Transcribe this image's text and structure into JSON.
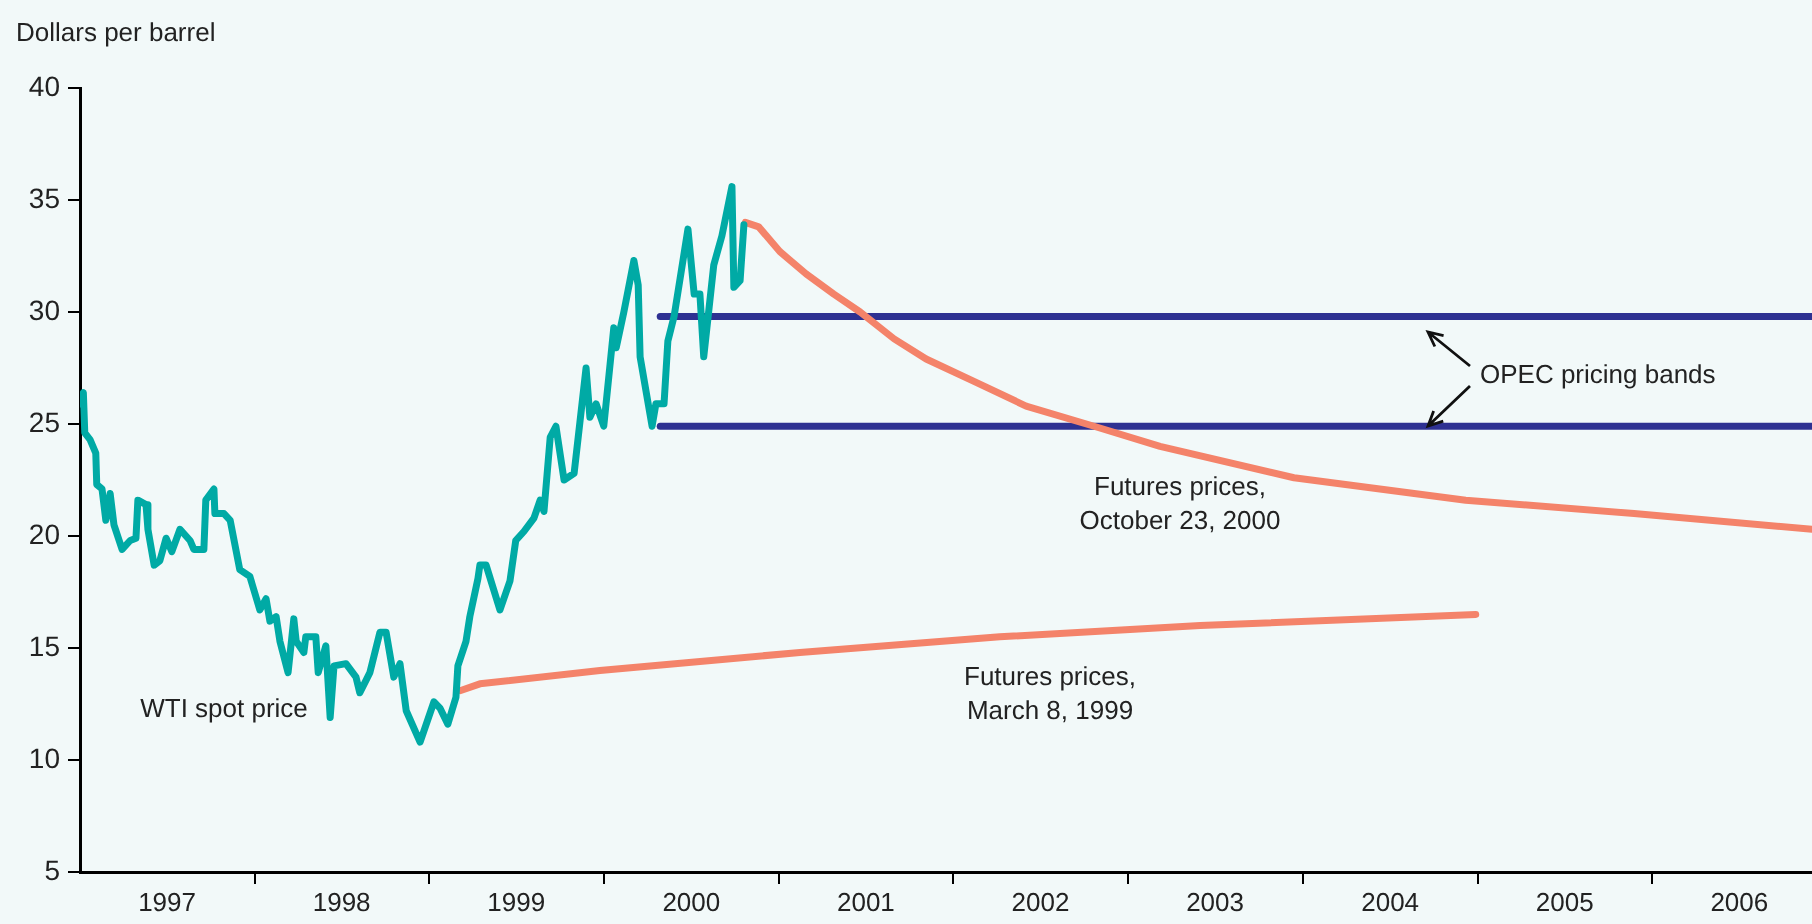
{
  "chart_data": {
    "type": "line",
    "ylabel": "Dollars per barrel",
    "xlim": [
      "1997-01-01",
      "2006-12-01"
    ],
    "xticks": [
      {
        "value": "1997-07-02",
        "label": "1997"
      },
      {
        "value": "1998-01-01",
        "label": null
      },
      {
        "value": "1998-07-02",
        "label": "1998"
      },
      {
        "value": "1999-01-01",
        "label": null
      },
      {
        "value": "1999-07-02",
        "label": "1999"
      },
      {
        "value": "2000-01-01",
        "label": null
      },
      {
        "value": "2000-07-02",
        "label": "2000"
      },
      {
        "value": "2001-01-01",
        "label": null
      },
      {
        "value": "2001-07-02",
        "label": "2001"
      },
      {
        "value": "2002-01-01",
        "label": null
      },
      {
        "value": "2002-07-02",
        "label": "2002"
      },
      {
        "value": "2003-01-01",
        "label": null
      },
      {
        "value": "2003-07-02",
        "label": "2003"
      },
      {
        "value": "2004-01-01",
        "label": null
      },
      {
        "value": "2004-07-02",
        "label": "2004"
      },
      {
        "value": "2005-01-01",
        "label": null
      },
      {
        "value": "2005-07-02",
        "label": "2005"
      },
      {
        "value": "2006-01-01",
        "label": null
      },
      {
        "value": "2006-07-02",
        "label": "2006"
      }
    ],
    "ylim": [
      5,
      40
    ],
    "yticks": [
      5,
      10,
      15,
      20,
      25,
      30,
      35,
      40
    ],
    "grid": false,
    "marker": "none",
    "line_style": "solid",
    "annotations": [
      "OPEC pricing bands"
    ],
    "series": [
      {
        "name": "WTI spot price",
        "color": "#00aaa5",
        "x": [
          "1997-01-01",
          "1997-01-08",
          "1997-01-11",
          "1997-01-22",
          "1997-02-03",
          "1997-02-05",
          "1997-02-16",
          "1997-02-24",
          "1997-03-05",
          "1997-03-13",
          "1997-03-30",
          "1997-04-16",
          "1997-04-28",
          "1997-05-02",
          "1997-05-19",
          "1997-05-23",
          "1997-06-05",
          "1997-06-17",
          "1997-06-30",
          "1997-07-12",
          "1997-07-29",
          "1997-08-19",
          "1997-08-27",
          "1997-09-17",
          "1997-09-21",
          "1997-10-08",
          "1997-10-10",
          "1997-10-29",
          "1997-11-11",
          "1997-12-01",
          "1997-12-22",
          "1998-01-12",
          "1998-01-25",
          "1998-02-02",
          "1998-02-15",
          "1998-02-23",
          "1998-03-12",
          "1998-03-24",
          "1998-03-29",
          "1998-04-14",
          "1998-04-18",
          "1998-05-09",
          "1998-05-14",
          "1998-05-30",
          "1998-06-08",
          "1998-06-16",
          "1998-07-11",
          "1998-08-01",
          "1998-08-09",
          "1998-08-30",
          "1998-09-20",
          "1998-10-03",
          "1998-10-19",
          "1998-11-01",
          "1998-11-14",
          "1998-12-13",
          "1999-01-11",
          "1999-01-24",
          "1999-02-09",
          "1999-02-26",
          "1999-03-02",
          "1999-03-19",
          "1999-03-27",
          "1999-04-13",
          "1999-04-17",
          "1999-04-30",
          "1999-05-29",
          "1999-06-19",
          "1999-07-01",
          "1999-07-18",
          "1999-08-08",
          "1999-08-21",
          "1999-08-29",
          "1999-09-11",
          "1999-09-23",
          "1999-10-10",
          "1999-10-31",
          "1999-11-25",
          "1999-12-03",
          "1999-12-16",
          "2000-01-01",
          "2000-01-22",
          "2000-01-27",
          "2000-02-12",
          "2000-03-04",
          "2000-03-13",
          "2000-03-17",
          "2000-04-11",
          "2000-04-19",
          "2000-05-06",
          "2000-05-14",
          "2000-05-27",
          "2000-06-25",
          "2000-07-08",
          "2000-07-20",
          "2000-07-28",
          "2000-08-18",
          "2000-09-04",
          "2000-09-25",
          "2000-09-29",
          "2000-10-12",
          "2000-10-20"
        ],
        "values": [
          25.9,
          26.4,
          24.6,
          24.3,
          23.7,
          22.3,
          22.1,
          20.7,
          21.9,
          20.5,
          19.4,
          19.8,
          19.9,
          21.6,
          21.4,
          20.3,
          18.7,
          18.9,
          19.9,
          19.3,
          20.3,
          19.8,
          19.4,
          19.4,
          21.6,
          22.1,
          21.0,
          21.0,
          20.7,
          18.5,
          18.2,
          16.7,
          17.2,
          16.2,
          16.4,
          15.3,
          13.9,
          16.3,
          15.3,
          14.8,
          15.5,
          15.5,
          13.9,
          15.1,
          11.9,
          14.2,
          14.3,
          13.7,
          13.0,
          13.9,
          15.7,
          15.7,
          13.7,
          14.3,
          12.2,
          10.8,
          12.6,
          12.3,
          11.6,
          12.8,
          14.2,
          15.3,
          16.4,
          18.1,
          18.7,
          18.7,
          16.7,
          18.0,
          19.8,
          20.2,
          20.8,
          21.6,
          21.1,
          24.4,
          24.9,
          22.5,
          22.8,
          27.5,
          25.3,
          25.9,
          24.9,
          29.3,
          28.4,
          30.0,
          32.3,
          31.2,
          28.0,
          24.9,
          25.9,
          25.9,
          28.7,
          29.8,
          33.7,
          30.8,
          30.8,
          28.0,
          32.1,
          33.4,
          35.6,
          31.1,
          31.4,
          33.9
        ]
      },
      {
        "name": "Futures prices,\nOctober 23, 2000",
        "color": "#f4836a",
        "x": [
          "2000-10-23",
          "2000-11-20",
          "2001-01-03",
          "2001-02-27",
          "2001-04-26",
          "2001-06-20",
          "2001-08-30",
          "2001-11-05",
          "2002-02-13",
          "2002-06-02",
          "2002-10-22",
          "2003-03-09",
          "2003-12-14",
          "2004-12-07",
          "2005-11-24",
          "2006-12-01"
        ],
        "values": [
          34.0,
          33.8,
          32.7,
          31.7,
          30.8,
          30.0,
          28.8,
          27.9,
          26.9,
          25.8,
          24.9,
          24.0,
          22.6,
          21.6,
          21.0,
          20.3
        ]
      },
      {
        "name": "Futures prices,\nMarch 8, 1999",
        "color": "#f4836a",
        "x": [
          "1999-03-08",
          "1999-04-17",
          "1999-12-24",
          "2001-02-14",
          "2002-04-08",
          "2003-06-01",
          "2004-12-28"
        ],
        "values": [
          13.1,
          13.4,
          14.0,
          14.8,
          15.5,
          16.0,
          16.5
        ]
      },
      {
        "color": "#2e3192",
        "x": [
          "2000-04-28",
          "2006-12-01"
        ],
        "values": [
          29.8,
          29.8
        ]
      },
      {
        "color": "#2e3192",
        "x": [
          "2000-04-28",
          "2006-12-01"
        ],
        "values": [
          24.9,
          24.9
        ]
      }
    ]
  }
}
